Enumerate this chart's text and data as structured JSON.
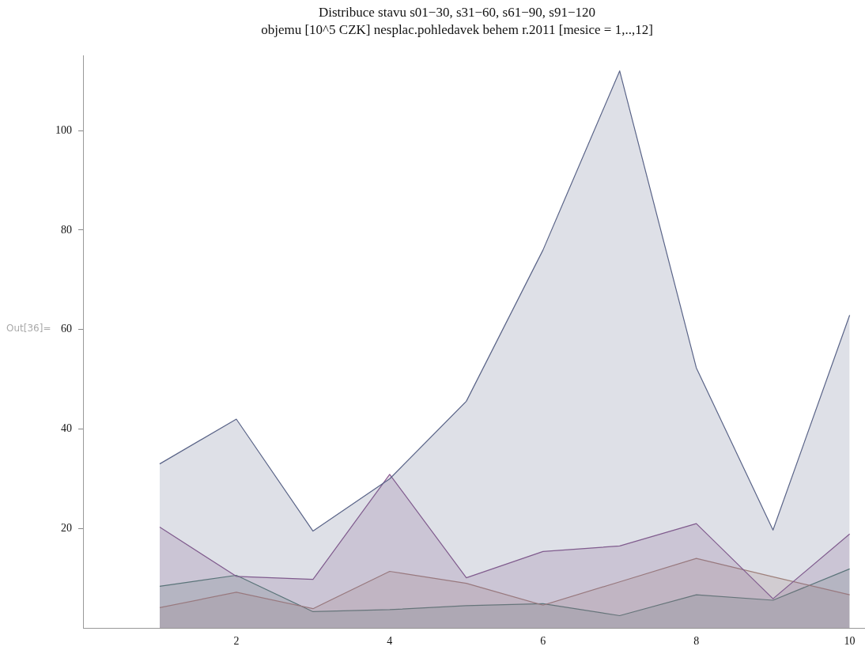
{
  "chart_data": {
    "type": "area",
    "title": "Distribuce stavu s01−30, s31−60, s61−90, s91−120",
    "subtitle": "objemu [10^5 CZK] nesplac.pohledavek behem r.2011 [mesice = 1,..,12]",
    "x": [
      1,
      2,
      3,
      4,
      5,
      6,
      7,
      8,
      9,
      10
    ],
    "series": [
      {
        "color": "#5a6488",
        "values": [
          33,
          42,
          19.5,
          30,
          45.6,
          76,
          112,
          52.3,
          19.7,
          62.9
        ]
      },
      {
        "color": "#8a5a90",
        "values": [
          20.3,
          10.4,
          9.8,
          30.9,
          10.1,
          15.4,
          16.5,
          21,
          5.9,
          18.9
        ]
      },
      {
        "color": "#b08878",
        "values": [
          4.1,
          7.2,
          3.9,
          11.4,
          9,
          4.6,
          9.3,
          14,
          10.3,
          6.7
        ]
      },
      {
        "color": "#4f8070",
        "values": [
          8.4,
          10.6,
          3.3,
          3.7,
          4.5,
          4.9,
          2.5,
          6.7,
          5.6,
          11.9
        ]
      }
    ],
    "xlim": [
      0,
      10.2
    ],
    "xticks": [
      2,
      4,
      6,
      8,
      10
    ],
    "ylim": [
      0,
      115
    ],
    "yticks": [
      20,
      40,
      60,
      80,
      100
    ],
    "annotations": [
      "Out[36]="
    ],
    "grid": false,
    "legend": false
  }
}
